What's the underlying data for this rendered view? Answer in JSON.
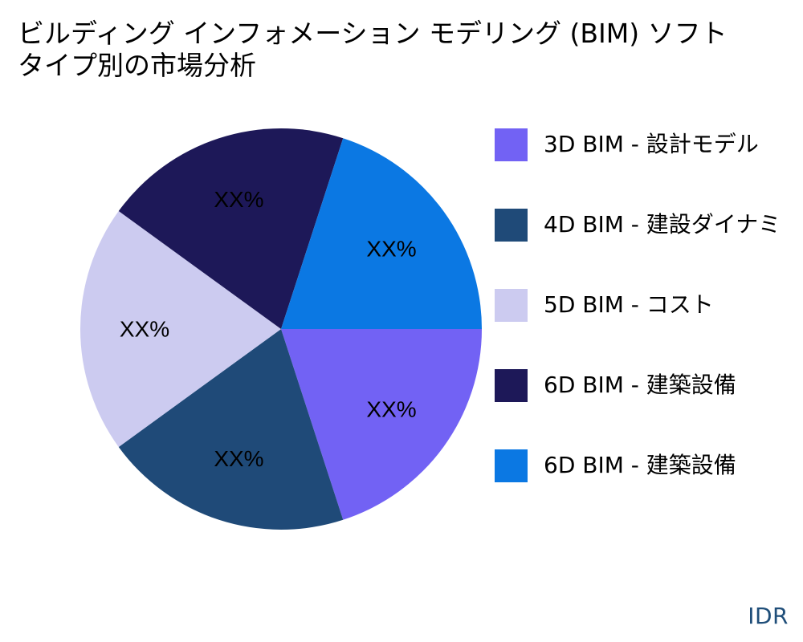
{
  "chart_data": {
    "type": "pie",
    "title_lines": [
      "ビルディング インフォメーション モデリング (BIM) ソフト",
      "タイプ別の市場分析"
    ],
    "slices": [
      {
        "label": "3D BIM - 設計モデル",
        "value": 20,
        "display": "XX%",
        "color": "#7262f4"
      },
      {
        "label": "4D BIM - 建設ダイナミ",
        "value": 20,
        "display": "XX%",
        "color": "#1f4a78"
      },
      {
        "label": "5D BIM - コスト",
        "value": 20,
        "display": "XX%",
        "color": "#cccbf0"
      },
      {
        "label": "6D BIM - 建築設備",
        "value": 20,
        "display": "XX%",
        "color": "#1d1858"
      },
      {
        "label": "6D BIM - 建築設備",
        "value": 20,
        "display": "XX%",
        "color": "#0b78e3"
      }
    ],
    "legend_position": "right"
  },
  "watermark": "IDR"
}
